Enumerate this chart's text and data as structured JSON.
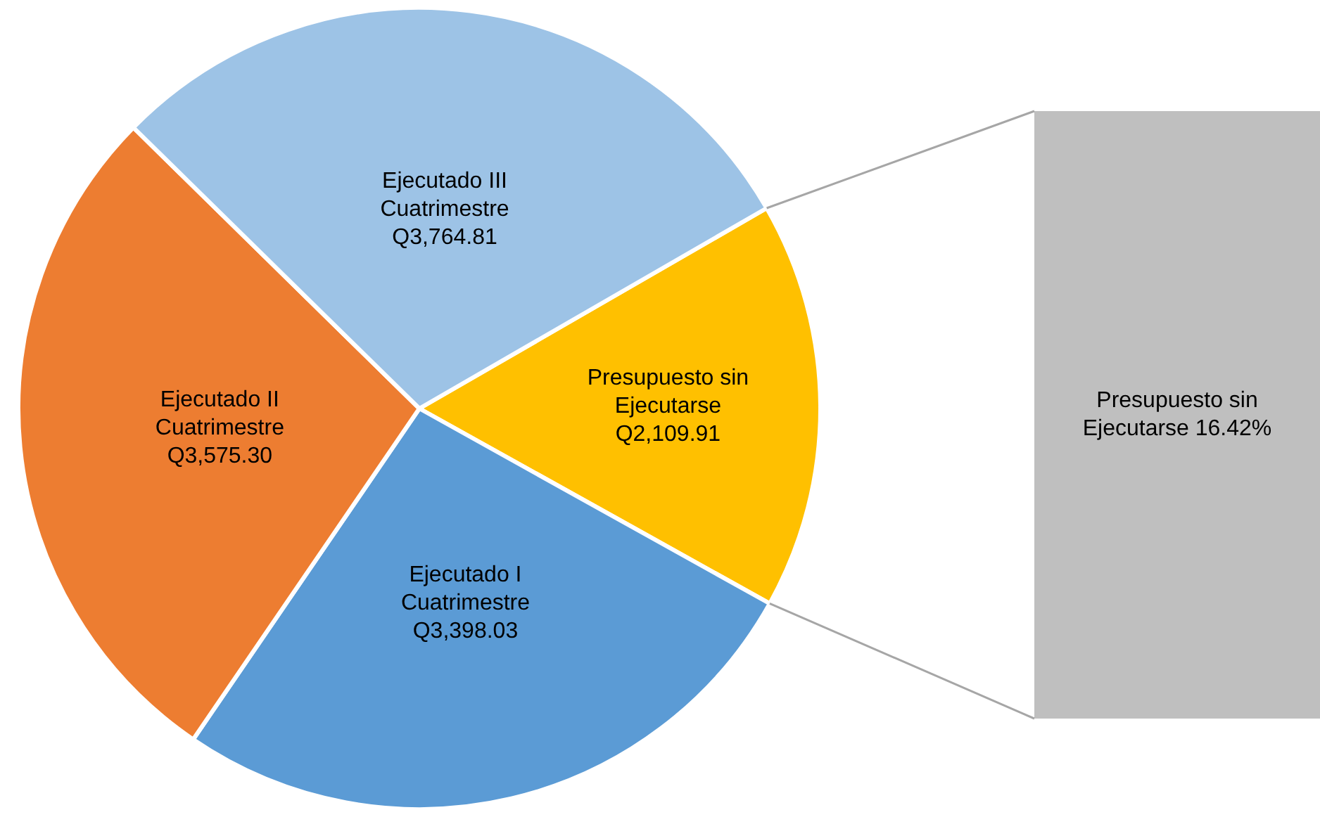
{
  "chart_data": {
    "type": "pie",
    "categories": [
      "Presupuesto sin Ejecutarse",
      "Ejecutado I Cuatrimestre",
      "Ejecutado II Cuatrimestre",
      "Ejecutado III Cuatrimestre"
    ],
    "values": [
      2109.91,
      3398.03,
      3575.3,
      3764.81
    ],
    "colors": [
      "#ffc000",
      "#5b9bd5",
      "#ed7d31",
      "#9dc3e6"
    ],
    "value_labels": [
      "Q2,109.91",
      "Q3,398.03",
      "Q3,575.30",
      "Q3,764.81"
    ],
    "annotations": [
      "Presupuesto sin Ejecutarse 16.42%"
    ],
    "legend": false
  }
}
